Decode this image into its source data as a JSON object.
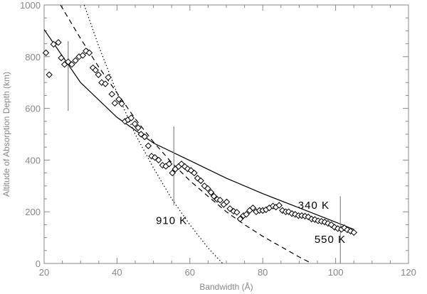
{
  "chart_data": {
    "type": "scatter",
    "title": "",
    "xlabel": "Bandwidth (Å)",
    "ylabel": "Altitude of Absorption Depth (km)",
    "xlim": [
      20,
      120
    ],
    "ylim": [
      0,
      1000
    ],
    "xticks": [
      20,
      40,
      60,
      80,
      100,
      120
    ],
    "yticks": [
      0,
      200,
      400,
      600,
      800,
      1000
    ],
    "xtick_labels": [
      "20",
      "40",
      "60",
      "80",
      "100",
      "120"
    ],
    "ytick_labels": [
      "0",
      "200",
      "400",
      "600",
      "800",
      "1000"
    ],
    "grid": false,
    "legend": "none",
    "series": [
      {
        "style": "diamonds",
        "x": [
          20.5,
          21.4,
          22.6,
          23.9,
          24.7,
          25.6,
          26.6,
          27.6,
          28.6,
          29.6,
          30.6,
          31.5,
          32.4,
          33.4,
          34.1,
          34.9,
          35.8,
          36.8,
          37.6,
          38.6,
          39.4,
          40.5,
          41.3,
          42.2,
          43.0,
          43.9,
          44.9,
          45.8,
          46.6,
          47.6,
          48.6,
          49.5,
          50.4,
          51.4,
          52.5,
          53.4,
          54.3,
          55.2,
          56.0,
          56.9,
          57.7,
          58.6,
          59.4,
          60.3,
          61.2,
          62.1,
          63.0,
          64.0,
          64.9,
          65.8,
          66.6,
          67.5,
          68.3,
          69.3,
          70.1,
          71.0,
          72.0,
          72.9,
          73.8,
          74.7,
          75.5,
          76.4,
          77.3,
          78.2,
          79.1,
          80.0,
          80.9,
          81.8,
          82.8,
          83.6,
          84.5,
          85.4,
          86.3,
          87.1,
          88.0,
          88.9,
          89.8,
          90.7,
          91.6,
          92.5,
          93.4,
          94.3,
          95.2,
          96.1,
          97.0,
          97.9,
          98.8,
          99.7,
          100.6,
          101.6,
          102.4,
          103.2,
          104.1,
          105.0
        ],
        "y": [
          815,
          730,
          848,
          855,
          795,
          770,
          780,
          770,
          785,
          800,
          805,
          822,
          815,
          757,
          748,
          730,
          700,
          695,
          720,
          655,
          620,
          635,
          618,
          550,
          556,
          563,
          540,
          525,
          500,
          490,
          455,
          415,
          410,
          400,
          380,
          376,
          385,
          350,
          365,
          375,
          385,
          375,
          366,
          360,
          350,
          330,
          320,
          300,
          290,
          275,
          260,
          248,
          245,
          228,
          238,
          212,
          202,
          198,
          172,
          185,
          190,
          205,
          215,
          200,
          205,
          205,
          208,
          215,
          222,
          218,
          225,
          205,
          200,
          200,
          193,
          190,
          185,
          185,
          183,
          180,
          172,
          170,
          165,
          163,
          160,
          155,
          150,
          140,
          135,
          132,
          138,
          130,
          125,
          120
        ]
      },
      {
        "name": "340 K",
        "style": "solid",
        "x": [
          20,
          30,
          40,
          50,
          60,
          70,
          80,
          90,
          100,
          105
        ],
        "y": [
          905,
          700,
          565,
          466,
          398,
          330,
          270,
          215,
          160,
          132
        ]
      },
      {
        "name": "550 K",
        "style": "dashed",
        "x": [
          24.5,
          30,
          35,
          40,
          45,
          50,
          55,
          60,
          65,
          70,
          75,
          80,
          85,
          90,
          93.5
        ],
        "y": [
          1000,
          870,
          760,
          660,
          560,
          470,
          390,
          320,
          260,
          200,
          150,
          105,
          65,
          25,
          0
        ]
      },
      {
        "name": "910 K",
        "style": "dotted",
        "x": [
          31.0,
          35,
          40,
          45,
          50,
          55,
          60,
          65,
          69
        ],
        "y": [
          1000,
          840,
          660,
          500,
          370,
          250,
          150,
          60,
          0
        ]
      }
    ],
    "vertical_markers": [
      {
        "x": 26.6,
        "y_range": [
          590,
          860
        ]
      },
      {
        "x": 55.6,
        "y_range": [
          225,
          530
        ]
      },
      {
        "x": 101.3,
        "y_range": [
          0,
          260
        ]
      }
    ],
    "annotations": [
      {
        "text": "910 K",
        "x": 55,
        "y": 153
      },
      {
        "text": "550 K",
        "x": 98.5,
        "y": 80
      },
      {
        "text": "340 K",
        "x": 94,
        "y": 212
      }
    ]
  }
}
